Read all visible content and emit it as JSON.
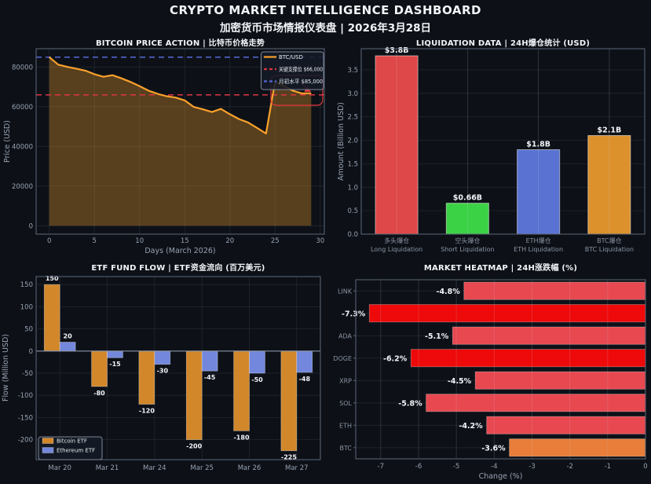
{
  "header": {
    "title": "CRYPTO MARKET INTELLIGENCE DASHBOARD",
    "subtitle": "加密货币市场情报仪表盘 | 2026年3月28日"
  },
  "colors": {
    "background": "#0d1117",
    "text_primary": "#f2f4f8",
    "text_muted": "#98a1b2",
    "grid": "rgba(136,146,166,0.16)",
    "spine": "#5d6678"
  },
  "chart_data": [
    {
      "type": "line",
      "title": "BITCOIN PRICE ACTION | 比特币价格走势",
      "xlabel": "Days (March 2026)",
      "ylabel": "Price (USD)",
      "x": [
        0,
        1,
        2,
        3,
        4,
        5,
        6,
        7,
        8,
        9,
        10,
        11,
        12,
        13,
        14,
        15,
        16,
        17,
        18,
        19,
        20,
        21,
        22,
        23,
        24,
        25,
        26,
        27,
        28,
        29
      ],
      "y": [
        85000,
        81200,
        80100,
        79200,
        78200,
        76400,
        75100,
        75900,
        74300,
        72500,
        70400,
        68100,
        66500,
        65300,
        64600,
        63200,
        59900,
        58700,
        57300,
        58900,
        56200,
        53800,
        52100,
        49300,
        46500,
        72800,
        70400,
        68000,
        66700,
        66800
      ],
      "xlim": [
        -1.45,
        30.45
      ],
      "ylim": [
        -4250,
        89250
      ],
      "xticks": [
        0,
        5,
        10,
        15,
        20,
        25,
        30
      ],
      "yticks": [
        0,
        20000,
        40000,
        60000,
        80000
      ],
      "line_color": "#f9a12c",
      "fill_opacity": 0.32,
      "hlines": [
        {
          "name": "support-line",
          "value": 66000,
          "color": "#dc3545",
          "label": "关键支撑位 $66,000"
        },
        {
          "name": "month-open-line",
          "value": 85000,
          "color": "#5668d8",
          "label": "月初水平 $85,000"
        }
      ],
      "legend": [
        {
          "label": "BTC/USD",
          "color": "#f9a12c",
          "dash": false
        },
        {
          "label": "关键支撑位 $66,000",
          "color": "#dc3545",
          "dash": true
        },
        {
          "label": "月初水平 $85,000",
          "color": "#5668d8",
          "dash": true
        }
      ],
      "annotation_color": "#e5383b"
    },
    {
      "type": "bar",
      "title": "LIQUIDATION DATA | 24H爆仓统计 (USD)",
      "ylabel": "Amount (Billion USD)",
      "categories_zh": [
        "多头爆仓",
        "空头爆仓",
        "ETH爆仓",
        "BTC爆仓"
      ],
      "categories_en": [
        "Long Liquidation",
        "Short Liquidation",
        "ETH Liquidation",
        "BTC Liquidation"
      ],
      "values": [
        3.8,
        0.66,
        1.8,
        2.1
      ],
      "value_labels": [
        "$3.8B",
        "$0.66B",
        "$1.8B",
        "$2.1B"
      ],
      "bar_colors": [
        "#de4848",
        "#3cd246",
        "#5a73d2",
        "#dc912d"
      ],
      "ylim": [
        0,
        3.95
      ],
      "yticks": [
        0,
        0.5,
        1,
        1.5,
        2,
        2.5,
        3,
        3.5
      ]
    },
    {
      "type": "grouped_bar",
      "title": "ETF FUND FLOW | ETF资金流向 (百万美元)",
      "ylabel": "Flow (Million USD)",
      "categories": [
        "Mar 20",
        "Mar 21",
        "Mar 24",
        "Mar 25",
        "Mar 26",
        "Mar 27"
      ],
      "series": [
        {
          "name": "Bitcoin ETF",
          "color": "#d2872a",
          "values": [
            150,
            -80,
            -120,
            -200,
            -180,
            -225
          ]
        },
        {
          "name": "Ethereum ETF",
          "color": "#7387dc",
          "values": [
            20,
            -15,
            -30,
            -45,
            -50,
            -48
          ]
        }
      ],
      "ylim": [
        -245,
        168
      ],
      "yticks": [
        -200,
        -150,
        -100,
        -50,
        0,
        50,
        100,
        150
      ]
    },
    {
      "type": "barh",
      "title": "MARKET HEATMAP | 24H涨跌幅 (%)",
      "xlabel": "Change (%)",
      "rows": [
        {
          "label": "LINK",
          "value": -4.8,
          "color": "#e84850"
        },
        {
          "label": "",
          "value": -7.3,
          "color": "#ee0a0a"
        },
        {
          "label": "ADA",
          "value": -5.1,
          "color": "#e84850"
        },
        {
          "label": "DOGE",
          "value": -6.2,
          "color": "#ee0a0a"
        },
        {
          "label": "XRP",
          "value": -4.5,
          "color": "#e84850"
        },
        {
          "label": "SOL",
          "value": -5.8,
          "color": "#e84850"
        },
        {
          "label": "ETH",
          "value": -4.2,
          "color": "#e84850"
        },
        {
          "label": "BTC",
          "value": -3.6,
          "color": "#e87e3a"
        }
      ],
      "xlim": [
        -7.66,
        0
      ],
      "xticks": [
        -7,
        -6,
        -5,
        -4,
        -3,
        -2,
        -1,
        0
      ]
    }
  ]
}
